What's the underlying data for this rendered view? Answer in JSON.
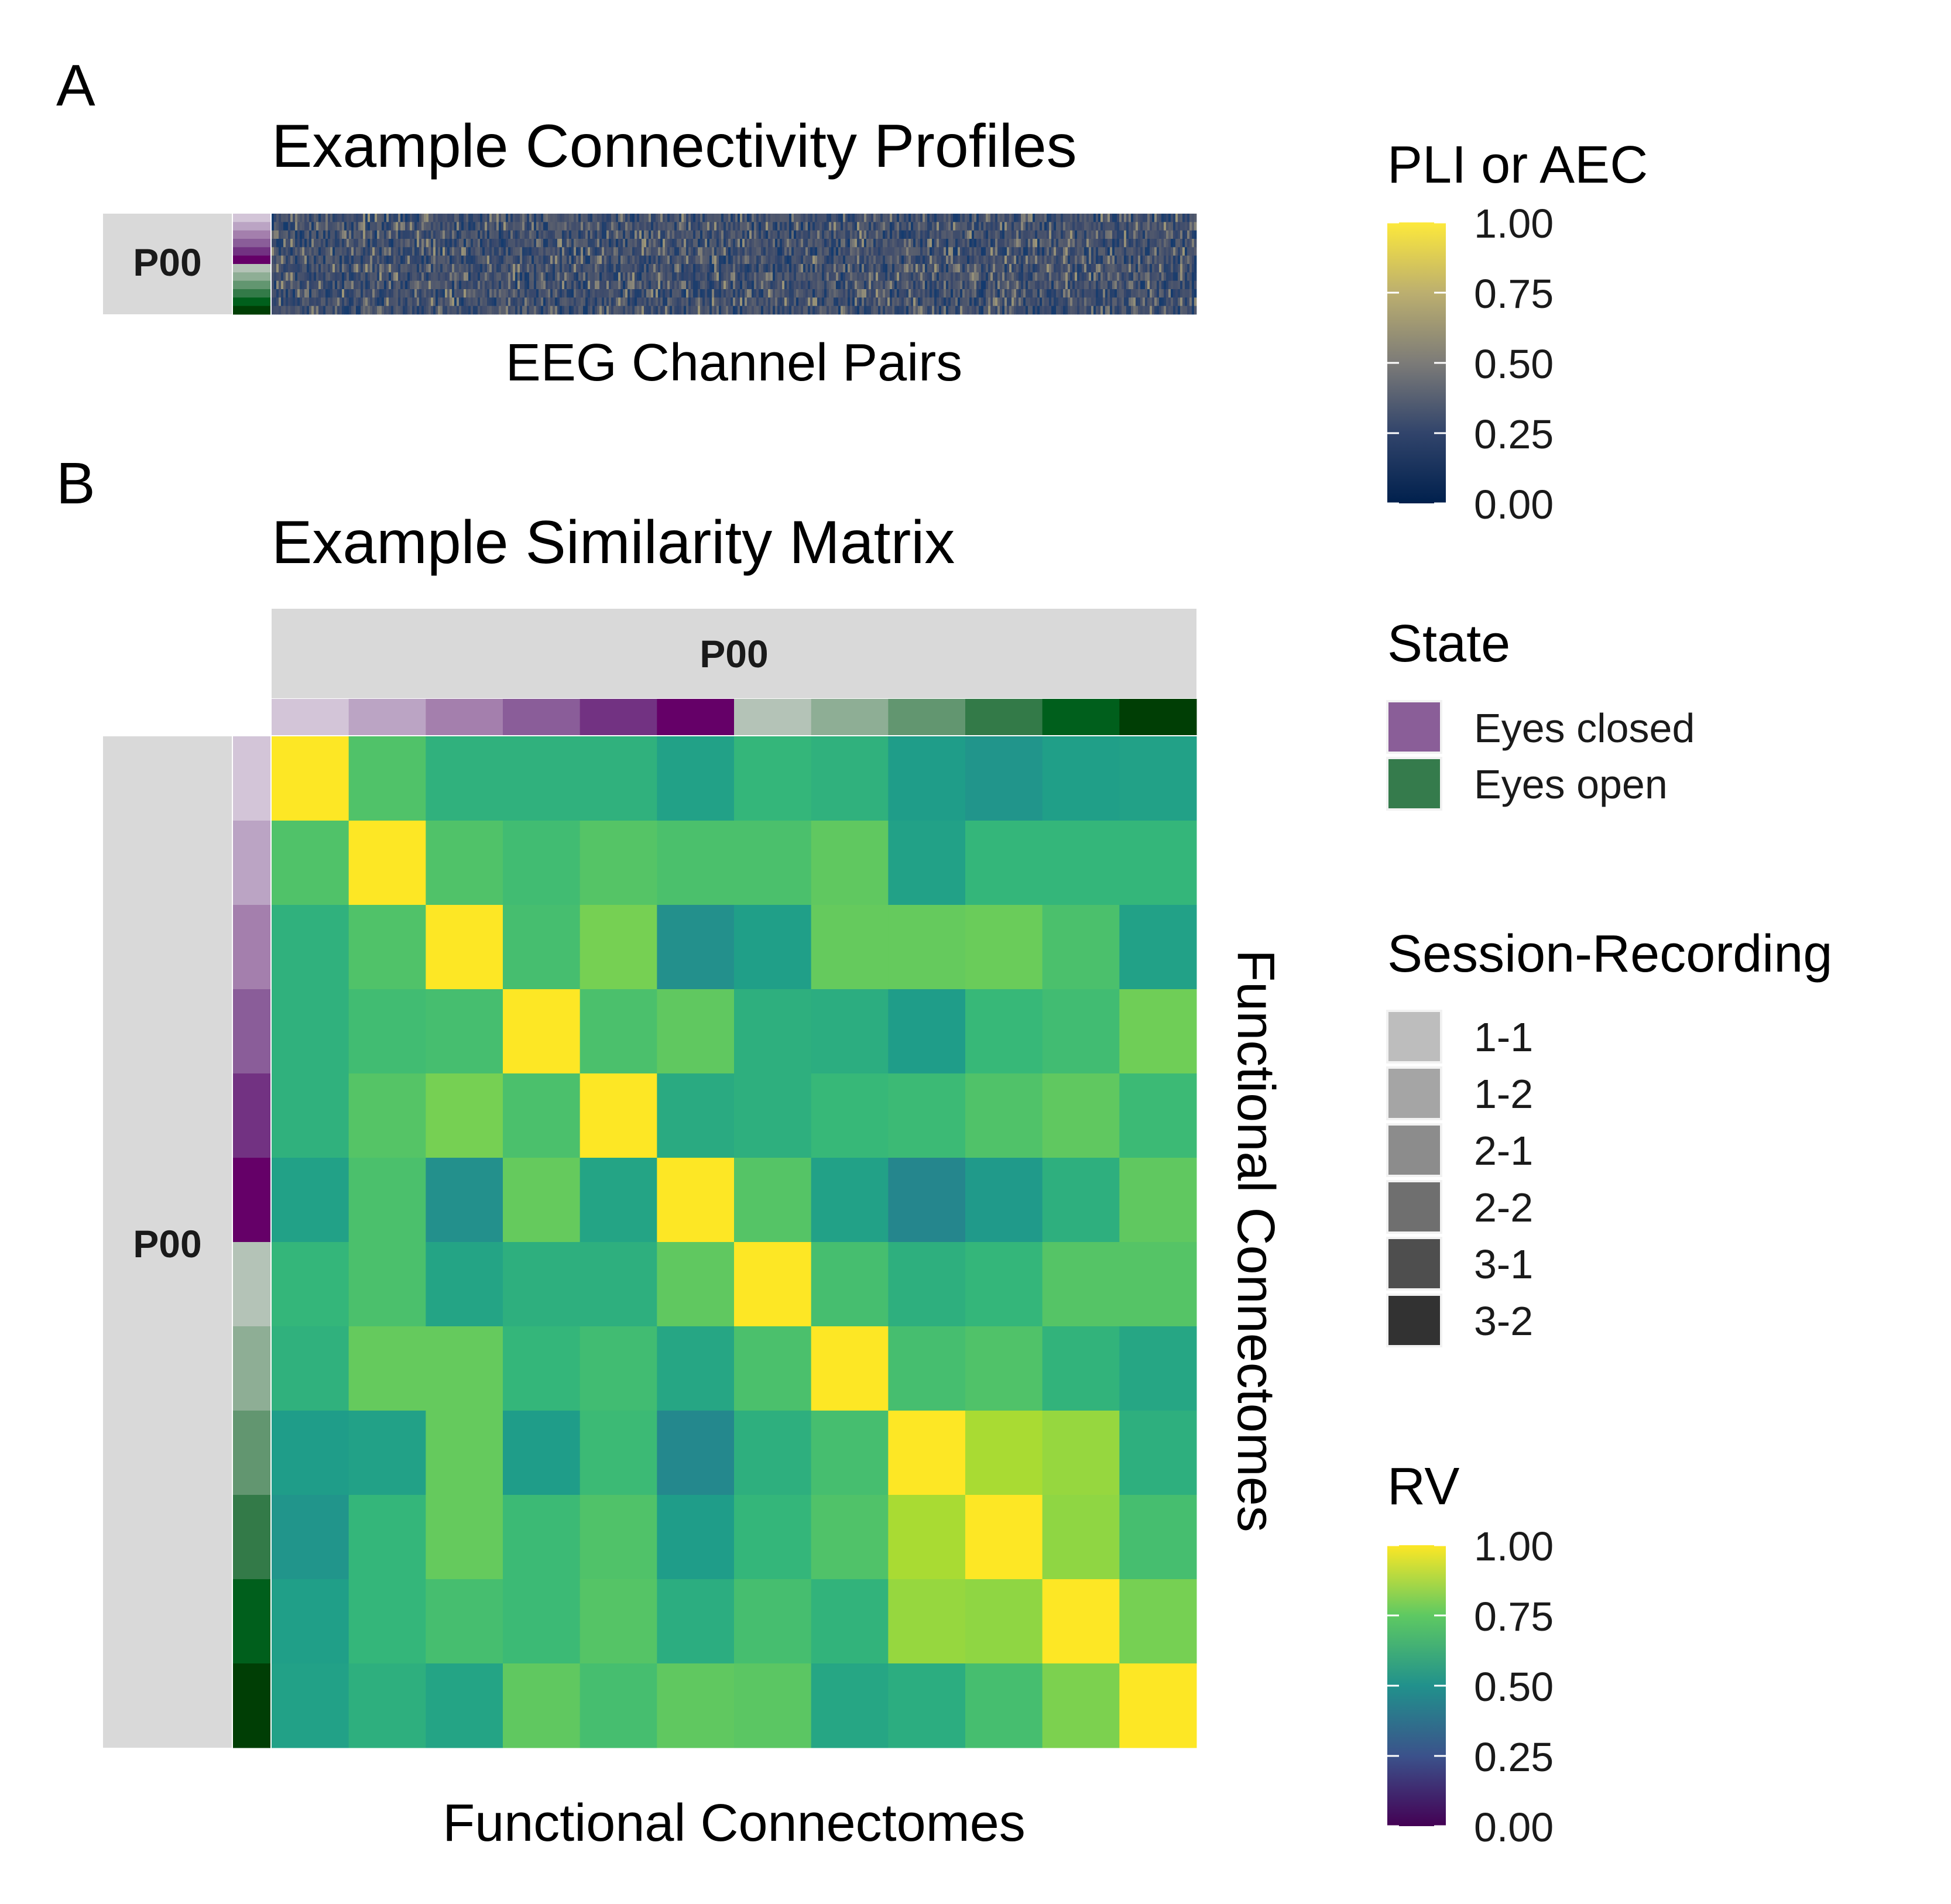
{
  "panel_labels": {
    "a": "A",
    "b": "B"
  },
  "chart_data": [
    {
      "type": "heatmap",
      "title": "Example Connectivity Profiles",
      "xlabel": "EEG Channel Pairs",
      "ylabel": "",
      "facet_label": "P00",
      "rows": 12,
      "columns": "many (one per EEG channel pair; too dense to read individually)",
      "value_range": [
        0,
        1
      ],
      "typical_values": "mostly 0.15–0.35 with scattered higher values up to ~0.6",
      "colorscale": "cividis",
      "legend": {
        "title": "PLI or AEC",
        "ticks": [
          "1.00",
          "0.75",
          "0.50",
          "0.25",
          "0.00"
        ]
      }
    },
    {
      "type": "heatmap",
      "title": "Example Similarity Matrix",
      "xlabel": "Functional Connectomes",
      "ylabel": "Functional Connectomes",
      "facet_label_top": "P00",
      "facet_label_left": "P00",
      "colorscale": "viridis",
      "value_range": [
        0,
        1
      ],
      "legend": {
        "title": "RV",
        "ticks": [
          "1.00",
          "0.75",
          "0.50",
          "0.25",
          "0.00"
        ]
      },
      "matrix": [
        [
          1.0,
          0.72,
          0.64,
          0.64,
          0.64,
          0.57,
          0.66,
          0.64,
          0.55,
          0.52,
          0.56,
          0.57
        ],
        [
          0.72,
          1.0,
          0.72,
          0.69,
          0.73,
          0.71,
          0.71,
          0.75,
          0.57,
          0.66,
          0.66,
          0.66
        ],
        [
          0.64,
          0.72,
          1.0,
          0.7,
          0.79,
          0.5,
          0.56,
          0.76,
          0.76,
          0.77,
          0.71,
          0.57
        ],
        [
          0.64,
          0.69,
          0.7,
          1.0,
          0.71,
          0.75,
          0.63,
          0.62,
          0.55,
          0.67,
          0.69,
          0.78
        ],
        [
          0.64,
          0.73,
          0.79,
          0.71,
          1.0,
          0.61,
          0.63,
          0.67,
          0.68,
          0.72,
          0.75,
          0.68
        ],
        [
          0.57,
          0.71,
          0.5,
          0.76,
          0.58,
          1.0,
          0.73,
          0.57,
          0.46,
          0.54,
          0.63,
          0.75
        ],
        [
          0.66,
          0.71,
          0.58,
          0.63,
          0.63,
          0.75,
          1.0,
          0.7,
          0.63,
          0.66,
          0.73,
          0.73
        ],
        [
          0.64,
          0.76,
          0.76,
          0.66,
          0.69,
          0.59,
          0.71,
          1.0,
          0.7,
          0.72,
          0.65,
          0.59
        ],
        [
          0.55,
          0.57,
          0.76,
          0.55,
          0.68,
          0.47,
          0.63,
          0.7,
          1.0,
          0.87,
          0.84,
          0.63
        ],
        [
          0.52,
          0.66,
          0.76,
          0.68,
          0.72,
          0.55,
          0.66,
          0.72,
          0.87,
          1.0,
          0.83,
          0.7
        ],
        [
          0.56,
          0.66,
          0.7,
          0.68,
          0.73,
          0.62,
          0.7,
          0.65,
          0.84,
          0.83,
          1.0,
          0.79
        ],
        [
          0.57,
          0.63,
          0.58,
          0.75,
          0.7,
          0.75,
          0.74,
          0.59,
          0.62,
          0.7,
          0.8,
          1.0
        ]
      ]
    }
  ],
  "connectome_order": {
    "state": [
      "Eyes closed",
      "Eyes closed",
      "Eyes closed",
      "Eyes closed",
      "Eyes closed",
      "Eyes closed",
      "Eyes open",
      "Eyes open",
      "Eyes open",
      "Eyes open",
      "Eyes open",
      "Eyes open"
    ],
    "session_recording": [
      "1-1",
      "1-2",
      "2-1",
      "2-2",
      "3-1",
      "3-2",
      "1-1",
      "1-2",
      "2-1",
      "2-2",
      "3-1",
      "3-2"
    ],
    "annotation_colors": [
      "#d3c5d8",
      "#bba4c4",
      "#a47fad",
      "#8a5d99",
      "#723282",
      "#650068",
      "#b4c3b7",
      "#8eae95",
      "#629670",
      "#337a48",
      "#005f1c",
      "#003e05"
    ]
  },
  "legends": {
    "pli": {
      "title": "PLI or AEC",
      "ticks": [
        "1.00",
        "0.75",
        "0.50",
        "0.25",
        "0.00"
      ]
    },
    "state": {
      "title": "State",
      "items": [
        {
          "label": "Eyes closed",
          "color": "#8a5e98"
        },
        {
          "label": "Eyes open",
          "color": "#357b4c"
        }
      ]
    },
    "session": {
      "title": "Session-Recording",
      "items": [
        {
          "label": "1-1",
          "color": "#bdbdbd"
        },
        {
          "label": "1-2",
          "color": "#a5a5a5"
        },
        {
          "label": "2-1",
          "color": "#8c8c8c"
        },
        {
          "label": "2-2",
          "color": "#6f6f6f"
        },
        {
          "label": "3-1",
          "color": "#4e4e4e"
        },
        {
          "label": "3-2",
          "color": "#323232"
        }
      ]
    },
    "rv": {
      "title": "RV",
      "ticks": [
        "1.00",
        "0.75",
        "0.50",
        "0.25",
        "0.00"
      ]
    }
  }
}
